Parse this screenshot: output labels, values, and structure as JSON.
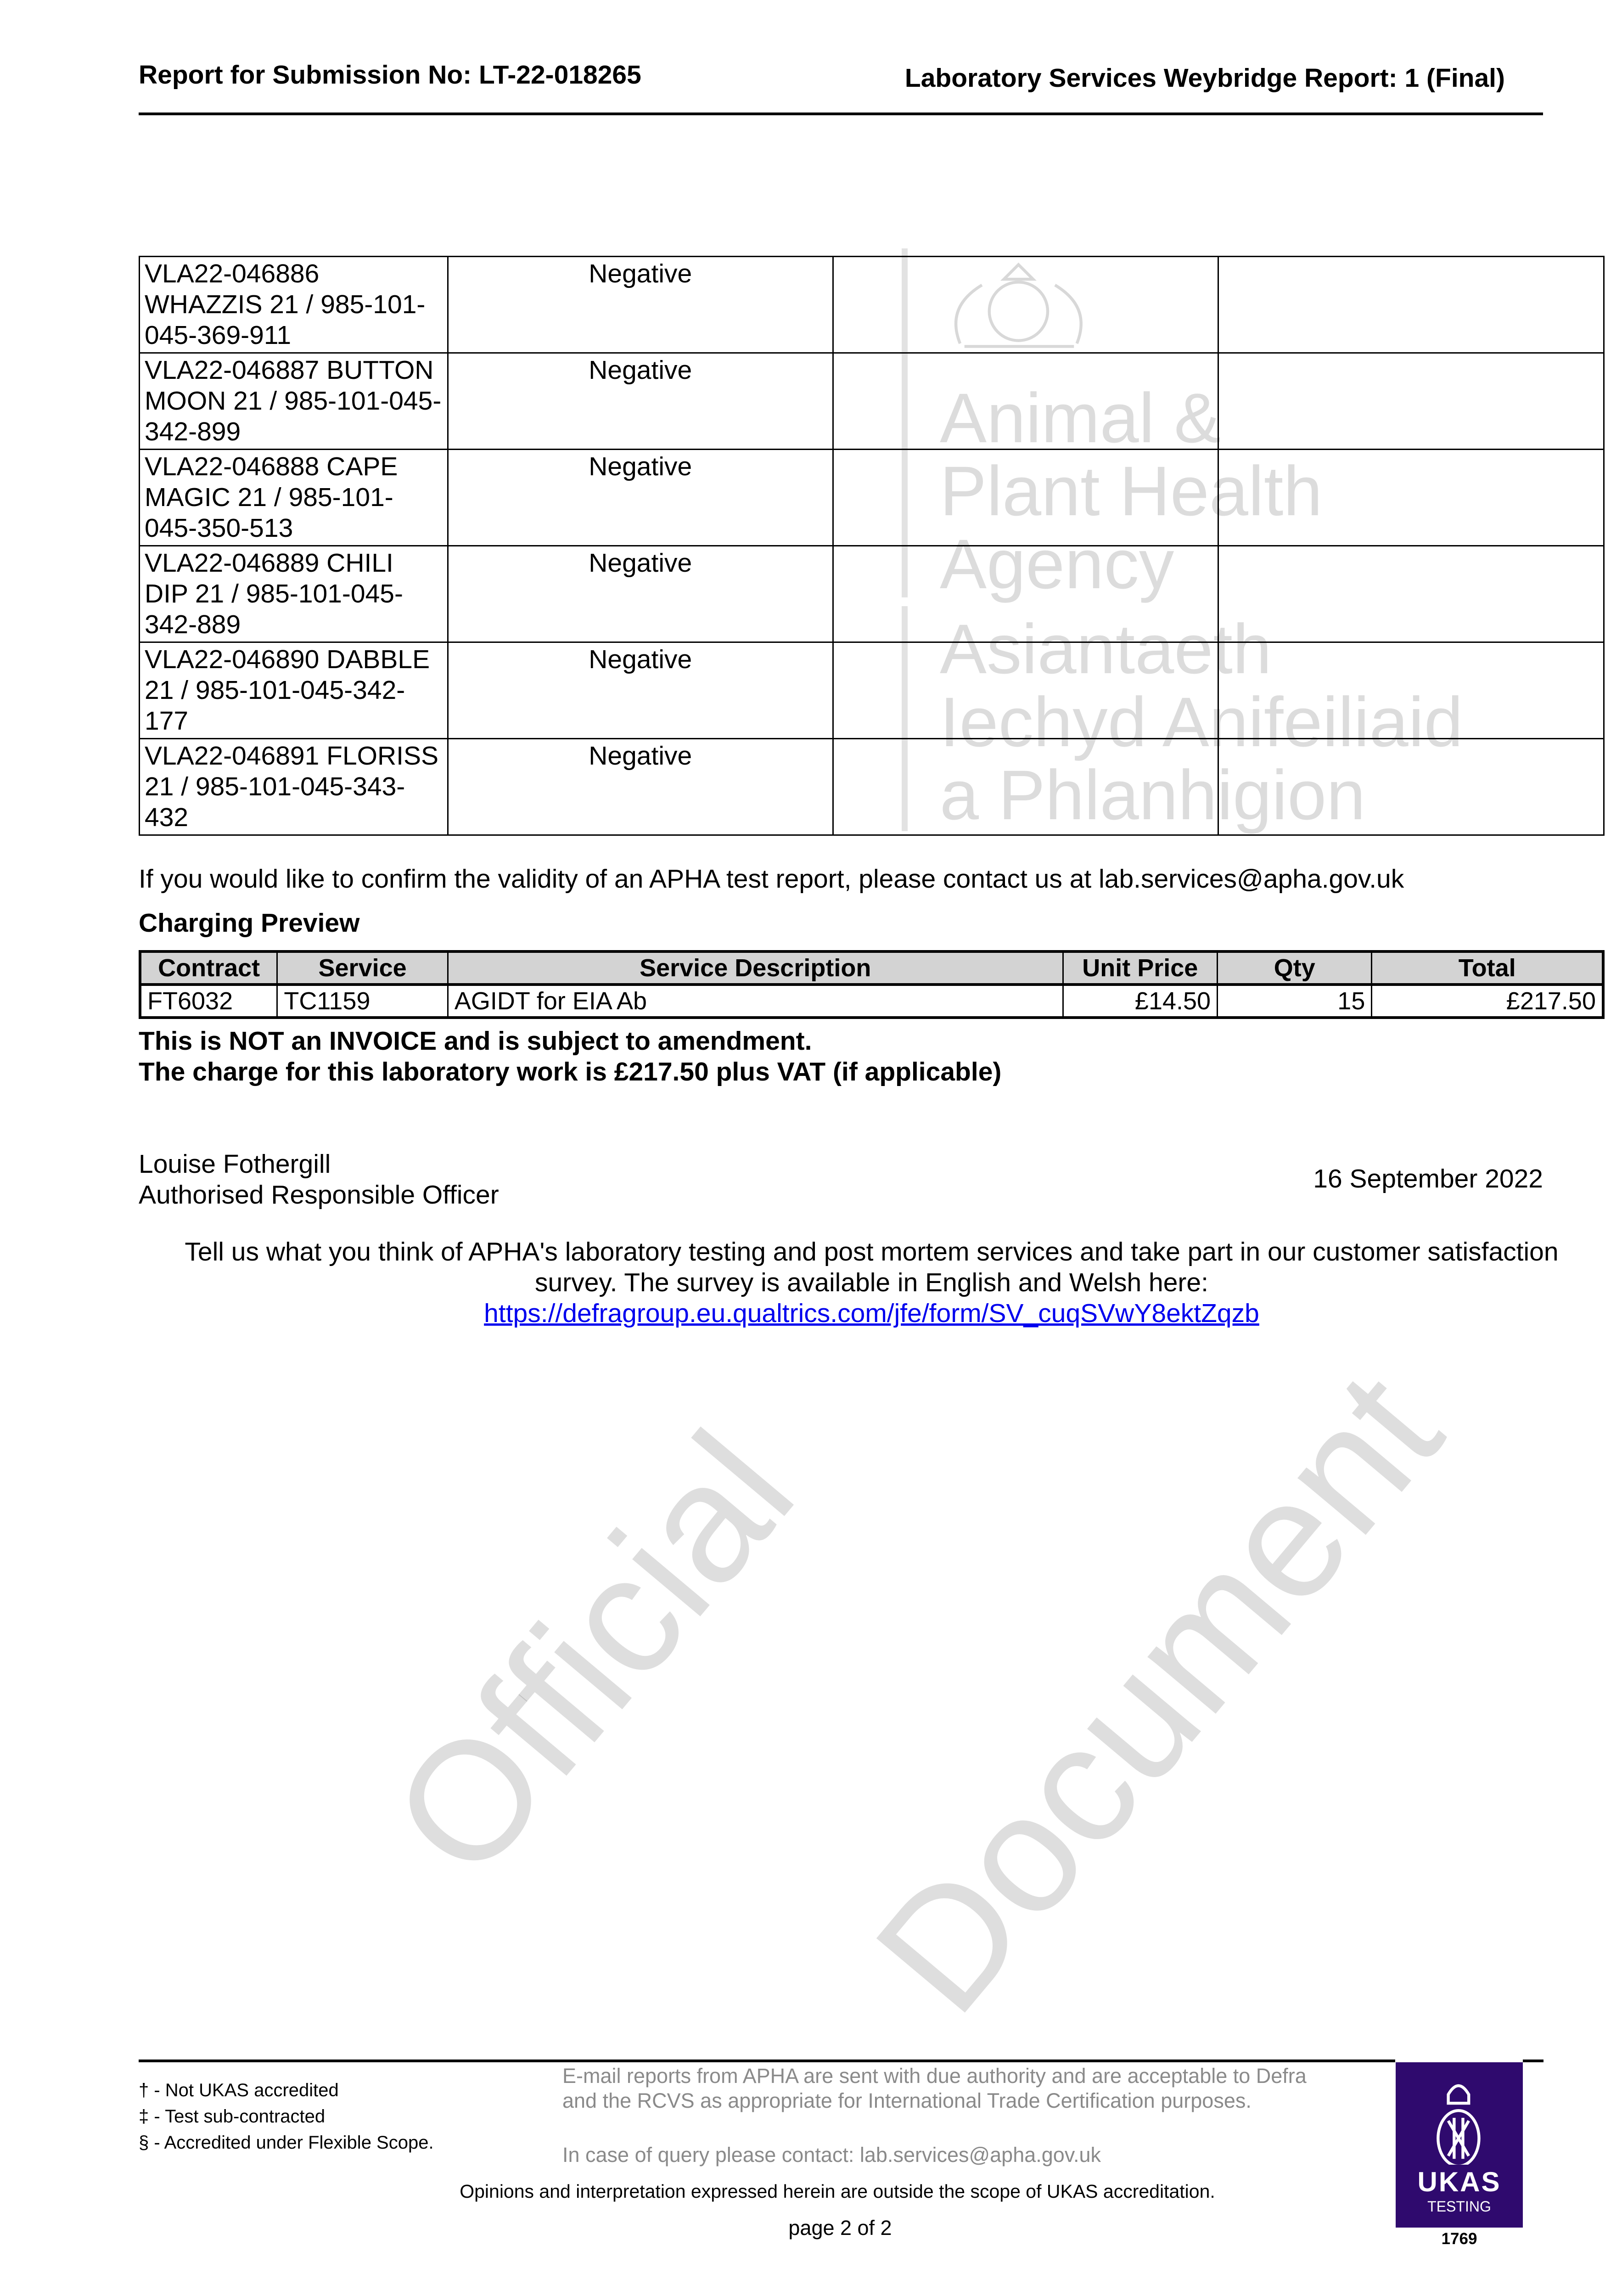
{
  "header": {
    "left": "Report for Submission No: LT-22-018265",
    "right": "Laboratory Services Weybridge Report: 1 (Final)"
  },
  "results": [
    {
      "sample": "VLA22-046886 WHAZZIS 21 / 985-101-045-369-911",
      "result": "Negative"
    },
    {
      "sample": "VLA22-046887 BUTTON MOON 21 / 985-101-045-342-899",
      "result": "Negative"
    },
    {
      "sample": "VLA22-046888 CAPE MAGIC 21 / 985-101-045-350-513",
      "result": "Negative"
    },
    {
      "sample": "VLA22-046889 CHILI DIP 21 / 985-101-045-342-889",
      "result": "Negative"
    },
    {
      "sample": "VLA22-046890 DABBLE 21 / 985-101-045-342-177",
      "result": "Negative"
    },
    {
      "sample": "VLA22-046891 FLORISS 21 / 985-101-045-343-432",
      "result": "Negative"
    }
  ],
  "watermark_logo": {
    "lines": [
      "Animal &",
      "Plant Health",
      "Agency",
      "Asiantaeth",
      "Iechyd Anifeiliaid",
      "a Phlanhigion"
    ]
  },
  "validity_note": "If you would like to confirm the validity of an APHA test report, please contact us at lab.services@apha.gov.uk",
  "charging": {
    "title": "Charging Preview",
    "headers": [
      "Contract",
      "Service",
      "Service Description",
      "Unit Price",
      "Qty",
      "Total"
    ],
    "row": [
      "FT6032",
      "TC1159",
      "AGIDT for EIA Ab",
      "£14.50",
      "15",
      "£217.50"
    ],
    "notice1": "This is NOT an INVOICE and is subject to amendment.",
    "notice2": "The charge for this laboratory work is £217.50 plus VAT (if applicable)"
  },
  "signature": {
    "name": "Louise Fothergill",
    "role": "Authorised Responsible Officer",
    "date": "16 September 2022"
  },
  "survey": {
    "text": "Tell us what you think of APHA's laboratory testing and post mortem services and take part in our customer satisfaction survey. The survey is available in English and Welsh here:",
    "link": "https://defragroup.eu.qualtrics.com/jfe/form/SV_cuqSVwY8ektZqzb"
  },
  "watermark": {
    "line1": "Official",
    "line2": "Document"
  },
  "footer": {
    "footnotes": [
      "† - Not UKAS accredited",
      "‡ - Test sub-contracted",
      "§ - Accredited under Flexible Scope."
    ],
    "email_note": "E-mail reports from APHA are sent with due authority and are acceptable to Defra and the RCVS as appropriate for International Trade Certification purposes.",
    "query_note": "In case of query please contact: lab.services@apha.gov.uk",
    "opinions": "Opinions and interpretation expressed herein are outside the scope of UKAS accreditation.",
    "page": "page 2 of 2",
    "ukas": {
      "name": "UKAS",
      "type": "TESTING",
      "number": "1769",
      "color": "#2f0a6e"
    }
  }
}
